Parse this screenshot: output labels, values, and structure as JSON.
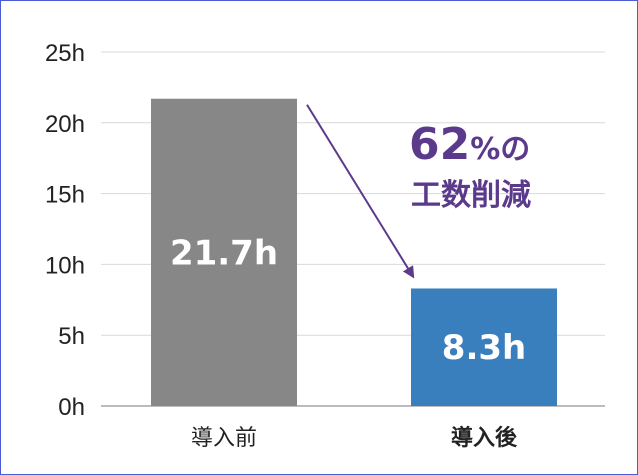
{
  "chart_data": {
    "type": "bar",
    "categories": [
      "導入前",
      "導入後"
    ],
    "values": [
      21.7,
      8.3
    ],
    "value_labels": [
      "21.7h",
      "8.3h"
    ],
    "bar_colors": [
      "#878787",
      "#3a7fbd"
    ],
    "category_bold": [
      false,
      true
    ],
    "ylim": [
      0,
      25
    ],
    "y_ticks": [
      0,
      5,
      10,
      15,
      20,
      25
    ],
    "y_tick_labels": [
      "0h",
      "5h",
      "10h",
      "15h",
      "20h",
      "25h"
    ],
    "grid": true,
    "annotation": {
      "percent": "62",
      "percent_sign": "%の",
      "line2": "工数削減",
      "color": "#5b3a8c"
    }
  }
}
